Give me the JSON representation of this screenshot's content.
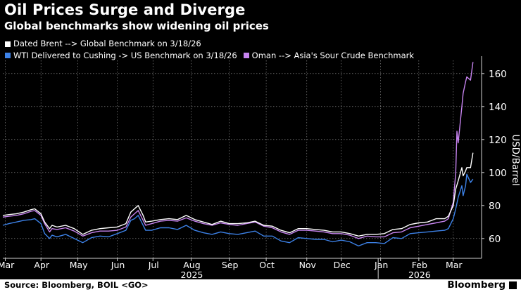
{
  "header": {
    "title": "Oil Prices Surge and Diverge",
    "subtitle": "Global benchmarks show widening oil prices"
  },
  "footer": {
    "source": "Source: Bloomberg, BOIL <GO>",
    "brand": "Bloomberg"
  },
  "chart_data": {
    "type": "line",
    "ylabel": "USD/Barrel",
    "ylim": [
      48,
      168
    ],
    "yticks": [
      60,
      80,
      100,
      120,
      140,
      160
    ],
    "grid": true,
    "legend_position": "top-left",
    "xlim": [
      "2025-03-01",
      "2026-03-25"
    ],
    "month_labels": [
      "Mar",
      "Apr",
      "May",
      "Jun",
      "Jul",
      "Aug",
      "Sep",
      "Oct",
      "Nov",
      "Dec",
      "Jan",
      "Feb",
      "Mar"
    ],
    "month_dates": [
      "2025-03-03",
      "2025-04-01",
      "2025-05-01",
      "2025-06-02",
      "2025-07-01",
      "2025-08-01",
      "2025-09-01",
      "2025-10-01",
      "2025-11-03",
      "2025-12-01",
      "2026-01-02",
      "2026-02-02",
      "2026-03-02"
    ],
    "year_labels": [
      {
        "label": "2025",
        "date": "2025-08-01"
      },
      {
        "label": "2026",
        "date": "2026-02-02"
      }
    ],
    "year_divider_date": "2025-12-31",
    "series": [
      {
        "name": "Dated Brent --> Global Benchmark on 3/18/26",
        "color": "#ffffff",
        "points": [
          [
            "2025-03-01",
            74
          ],
          [
            "2025-03-06",
            74.5
          ],
          [
            "2025-03-12",
            75
          ],
          [
            "2025-03-18",
            76
          ],
          [
            "2025-03-24",
            77.5
          ],
          [
            "2025-03-27",
            78
          ],
          [
            "2025-04-01",
            75
          ],
          [
            "2025-04-04",
            70
          ],
          [
            "2025-04-08",
            66
          ],
          [
            "2025-04-10",
            68
          ],
          [
            "2025-04-14",
            67
          ],
          [
            "2025-04-21",
            68
          ],
          [
            "2025-04-28",
            66
          ],
          [
            "2025-05-05",
            62.5
          ],
          [
            "2025-05-12",
            65
          ],
          [
            "2025-05-19",
            66
          ],
          [
            "2025-05-26",
            66.5
          ],
          [
            "2025-06-02",
            67
          ],
          [
            "2025-06-09",
            69
          ],
          [
            "2025-06-13",
            76
          ],
          [
            "2025-06-16",
            78
          ],
          [
            "2025-06-19",
            80
          ],
          [
            "2025-06-23",
            74
          ],
          [
            "2025-06-25",
            70
          ],
          [
            "2025-06-30",
            70.5
          ],
          [
            "2025-07-07",
            71.5
          ],
          [
            "2025-07-14",
            72
          ],
          [
            "2025-07-21",
            71.5
          ],
          [
            "2025-07-28",
            74
          ],
          [
            "2025-08-04",
            71.5
          ],
          [
            "2025-08-11",
            70
          ],
          [
            "2025-08-18",
            68.5
          ],
          [
            "2025-08-25",
            70.5
          ],
          [
            "2025-09-01",
            69
          ],
          [
            "2025-09-08",
            69
          ],
          [
            "2025-09-15",
            69.5
          ],
          [
            "2025-09-22",
            70.5
          ],
          [
            "2025-09-29",
            68
          ],
          [
            "2025-10-06",
            67.5
          ],
          [
            "2025-10-13",
            65
          ],
          [
            "2025-10-20",
            63.5
          ],
          [
            "2025-10-27",
            66
          ],
          [
            "2025-11-03",
            66
          ],
          [
            "2025-11-10",
            65.5
          ],
          [
            "2025-11-17",
            65
          ],
          [
            "2025-11-24",
            64
          ],
          [
            "2025-12-01",
            64
          ],
          [
            "2025-12-08",
            63
          ],
          [
            "2025-12-15",
            61.5
          ],
          [
            "2025-12-22",
            62.5
          ],
          [
            "2025-12-29",
            62.5
          ],
          [
            "2026-01-05",
            63
          ],
          [
            "2026-01-12",
            65.5
          ],
          [
            "2026-01-19",
            66
          ],
          [
            "2026-01-26",
            68.5
          ],
          [
            "2026-02-02",
            69.5
          ],
          [
            "2026-02-09",
            70
          ],
          [
            "2026-02-16",
            72
          ],
          [
            "2026-02-23",
            72
          ],
          [
            "2026-02-26",
            73.5
          ],
          [
            "2026-03-02",
            80
          ],
          [
            "2026-03-04",
            90
          ],
          [
            "2026-03-06",
            95
          ],
          [
            "2026-03-09",
            103
          ],
          [
            "2026-03-10",
            98
          ],
          [
            "2026-03-12",
            101
          ],
          [
            "2026-03-13",
            103
          ],
          [
            "2026-03-16",
            103
          ],
          [
            "2026-03-18",
            112
          ]
        ]
      },
      {
        "name": "WTI Delivered to Cushing -> US Benchmark on 3/18/26",
        "color": "#3d82e8",
        "points": [
          [
            "2025-03-01",
            68
          ],
          [
            "2025-03-06",
            69
          ],
          [
            "2025-03-12",
            70
          ],
          [
            "2025-03-18",
            71
          ],
          [
            "2025-03-24",
            71.5
          ],
          [
            "2025-03-27",
            72
          ],
          [
            "2025-04-01",
            69
          ],
          [
            "2025-04-04",
            63
          ],
          [
            "2025-04-08",
            60
          ],
          [
            "2025-04-10",
            62
          ],
          [
            "2025-04-14",
            61
          ],
          [
            "2025-04-21",
            62.5
          ],
          [
            "2025-04-28",
            60
          ],
          [
            "2025-05-05",
            57.5
          ],
          [
            "2025-05-12",
            60.5
          ],
          [
            "2025-05-19",
            61.5
          ],
          [
            "2025-05-26",
            61
          ],
          [
            "2025-06-02",
            63
          ],
          [
            "2025-06-09",
            65
          ],
          [
            "2025-06-13",
            71
          ],
          [
            "2025-06-16",
            72
          ],
          [
            "2025-06-19",
            74
          ],
          [
            "2025-06-23",
            68
          ],
          [
            "2025-06-25",
            65
          ],
          [
            "2025-06-30",
            65
          ],
          [
            "2025-07-07",
            66.5
          ],
          [
            "2025-07-14",
            66.5
          ],
          [
            "2025-07-21",
            65.5
          ],
          [
            "2025-07-28",
            68
          ],
          [
            "2025-08-04",
            65
          ],
          [
            "2025-08-11",
            63.5
          ],
          [
            "2025-08-18",
            62.5
          ],
          [
            "2025-08-25",
            64
          ],
          [
            "2025-09-01",
            63
          ],
          [
            "2025-09-08",
            62.5
          ],
          [
            "2025-09-15",
            63.5
          ],
          [
            "2025-09-22",
            64.5
          ],
          [
            "2025-09-29",
            61.5
          ],
          [
            "2025-10-06",
            61.5
          ],
          [
            "2025-10-13",
            58.5
          ],
          [
            "2025-10-20",
            57.5
          ],
          [
            "2025-10-27",
            60.5
          ],
          [
            "2025-11-03",
            60
          ],
          [
            "2025-11-10",
            59.5
          ],
          [
            "2025-11-17",
            59.5
          ],
          [
            "2025-11-24",
            58
          ],
          [
            "2025-12-01",
            59
          ],
          [
            "2025-12-08",
            58
          ],
          [
            "2025-12-15",
            55.5
          ],
          [
            "2025-12-22",
            57.5
          ],
          [
            "2025-12-29",
            57.5
          ],
          [
            "2026-01-05",
            57
          ],
          [
            "2026-01-12",
            60.5
          ],
          [
            "2026-01-19",
            60
          ],
          [
            "2026-01-26",
            63
          ],
          [
            "2026-02-02",
            63.5
          ],
          [
            "2026-02-09",
            64
          ],
          [
            "2026-02-16",
            64.5
          ],
          [
            "2026-02-23",
            65
          ],
          [
            "2026-02-26",
            66
          ],
          [
            "2026-03-02",
            72
          ],
          [
            "2026-03-04",
            78
          ],
          [
            "2026-03-06",
            85
          ],
          [
            "2026-03-09",
            92
          ],
          [
            "2026-03-10",
            86
          ],
          [
            "2026-03-12",
            92
          ],
          [
            "2026-03-13",
            99
          ],
          [
            "2026-03-16",
            94
          ],
          [
            "2026-03-18",
            96
          ]
        ]
      },
      {
        "name": "Oman --> Asia's Sour Crude Benchmark",
        "color": "#c784f0",
        "points": [
          [
            "2025-03-01",
            73
          ],
          [
            "2025-03-06",
            73.5
          ],
          [
            "2025-03-12",
            74
          ],
          [
            "2025-03-18",
            75
          ],
          [
            "2025-03-24",
            76.5
          ],
          [
            "2025-03-27",
            77
          ],
          [
            "2025-04-01",
            74
          ],
          [
            "2025-04-04",
            69
          ],
          [
            "2025-04-08",
            64
          ],
          [
            "2025-04-10",
            66
          ],
          [
            "2025-04-14",
            65.5
          ],
          [
            "2025-04-21",
            66.5
          ],
          [
            "2025-04-28",
            64.5
          ],
          [
            "2025-05-05",
            61.5
          ],
          [
            "2025-05-12",
            63.5
          ],
          [
            "2025-05-19",
            64.5
          ],
          [
            "2025-05-26",
            64.5
          ],
          [
            "2025-06-02",
            65
          ],
          [
            "2025-06-09",
            67
          ],
          [
            "2025-06-13",
            73
          ],
          [
            "2025-06-16",
            75
          ],
          [
            "2025-06-19",
            77
          ],
          [
            "2025-06-23",
            71
          ],
          [
            "2025-06-25",
            68
          ],
          [
            "2025-06-30",
            69
          ],
          [
            "2025-07-07",
            70.5
          ],
          [
            "2025-07-14",
            71
          ],
          [
            "2025-07-21",
            70.5
          ],
          [
            "2025-07-28",
            72.5
          ],
          [
            "2025-08-04",
            70.5
          ],
          [
            "2025-08-11",
            69
          ],
          [
            "2025-08-18",
            68
          ],
          [
            "2025-08-25",
            69.5
          ],
          [
            "2025-09-01",
            68.5
          ],
          [
            "2025-09-08",
            68
          ],
          [
            "2025-09-15",
            69
          ],
          [
            "2025-09-22",
            70
          ],
          [
            "2025-09-29",
            67.5
          ],
          [
            "2025-10-06",
            66.5
          ],
          [
            "2025-10-13",
            64
          ],
          [
            "2025-10-20",
            62.5
          ],
          [
            "2025-10-27",
            65
          ],
          [
            "2025-11-03",
            65
          ],
          [
            "2025-11-10",
            64.5
          ],
          [
            "2025-11-17",
            64
          ],
          [
            "2025-11-24",
            63
          ],
          [
            "2025-12-01",
            63
          ],
          [
            "2025-12-08",
            62
          ],
          [
            "2025-12-15",
            60
          ],
          [
            "2025-12-22",
            61.5
          ],
          [
            "2025-12-29",
            61
          ],
          [
            "2026-01-05",
            61
          ],
          [
            "2026-01-12",
            63.5
          ],
          [
            "2026-01-19",
            64
          ],
          [
            "2026-01-26",
            66.5
          ],
          [
            "2026-02-02",
            67.5
          ],
          [
            "2026-02-09",
            68.5
          ],
          [
            "2026-02-16",
            69.5
          ],
          [
            "2026-02-23",
            70.5
          ],
          [
            "2026-02-26",
            72
          ],
          [
            "2026-03-02",
            82
          ],
          [
            "2026-03-04",
            100
          ],
          [
            "2026-03-05",
            125
          ],
          [
            "2026-03-06",
            118
          ],
          [
            "2026-03-09",
            140
          ],
          [
            "2026-03-10",
            148
          ],
          [
            "2026-03-12",
            155
          ],
          [
            "2026-03-13",
            158
          ],
          [
            "2026-03-16",
            156
          ],
          [
            "2026-03-18",
            167
          ]
        ]
      }
    ]
  }
}
